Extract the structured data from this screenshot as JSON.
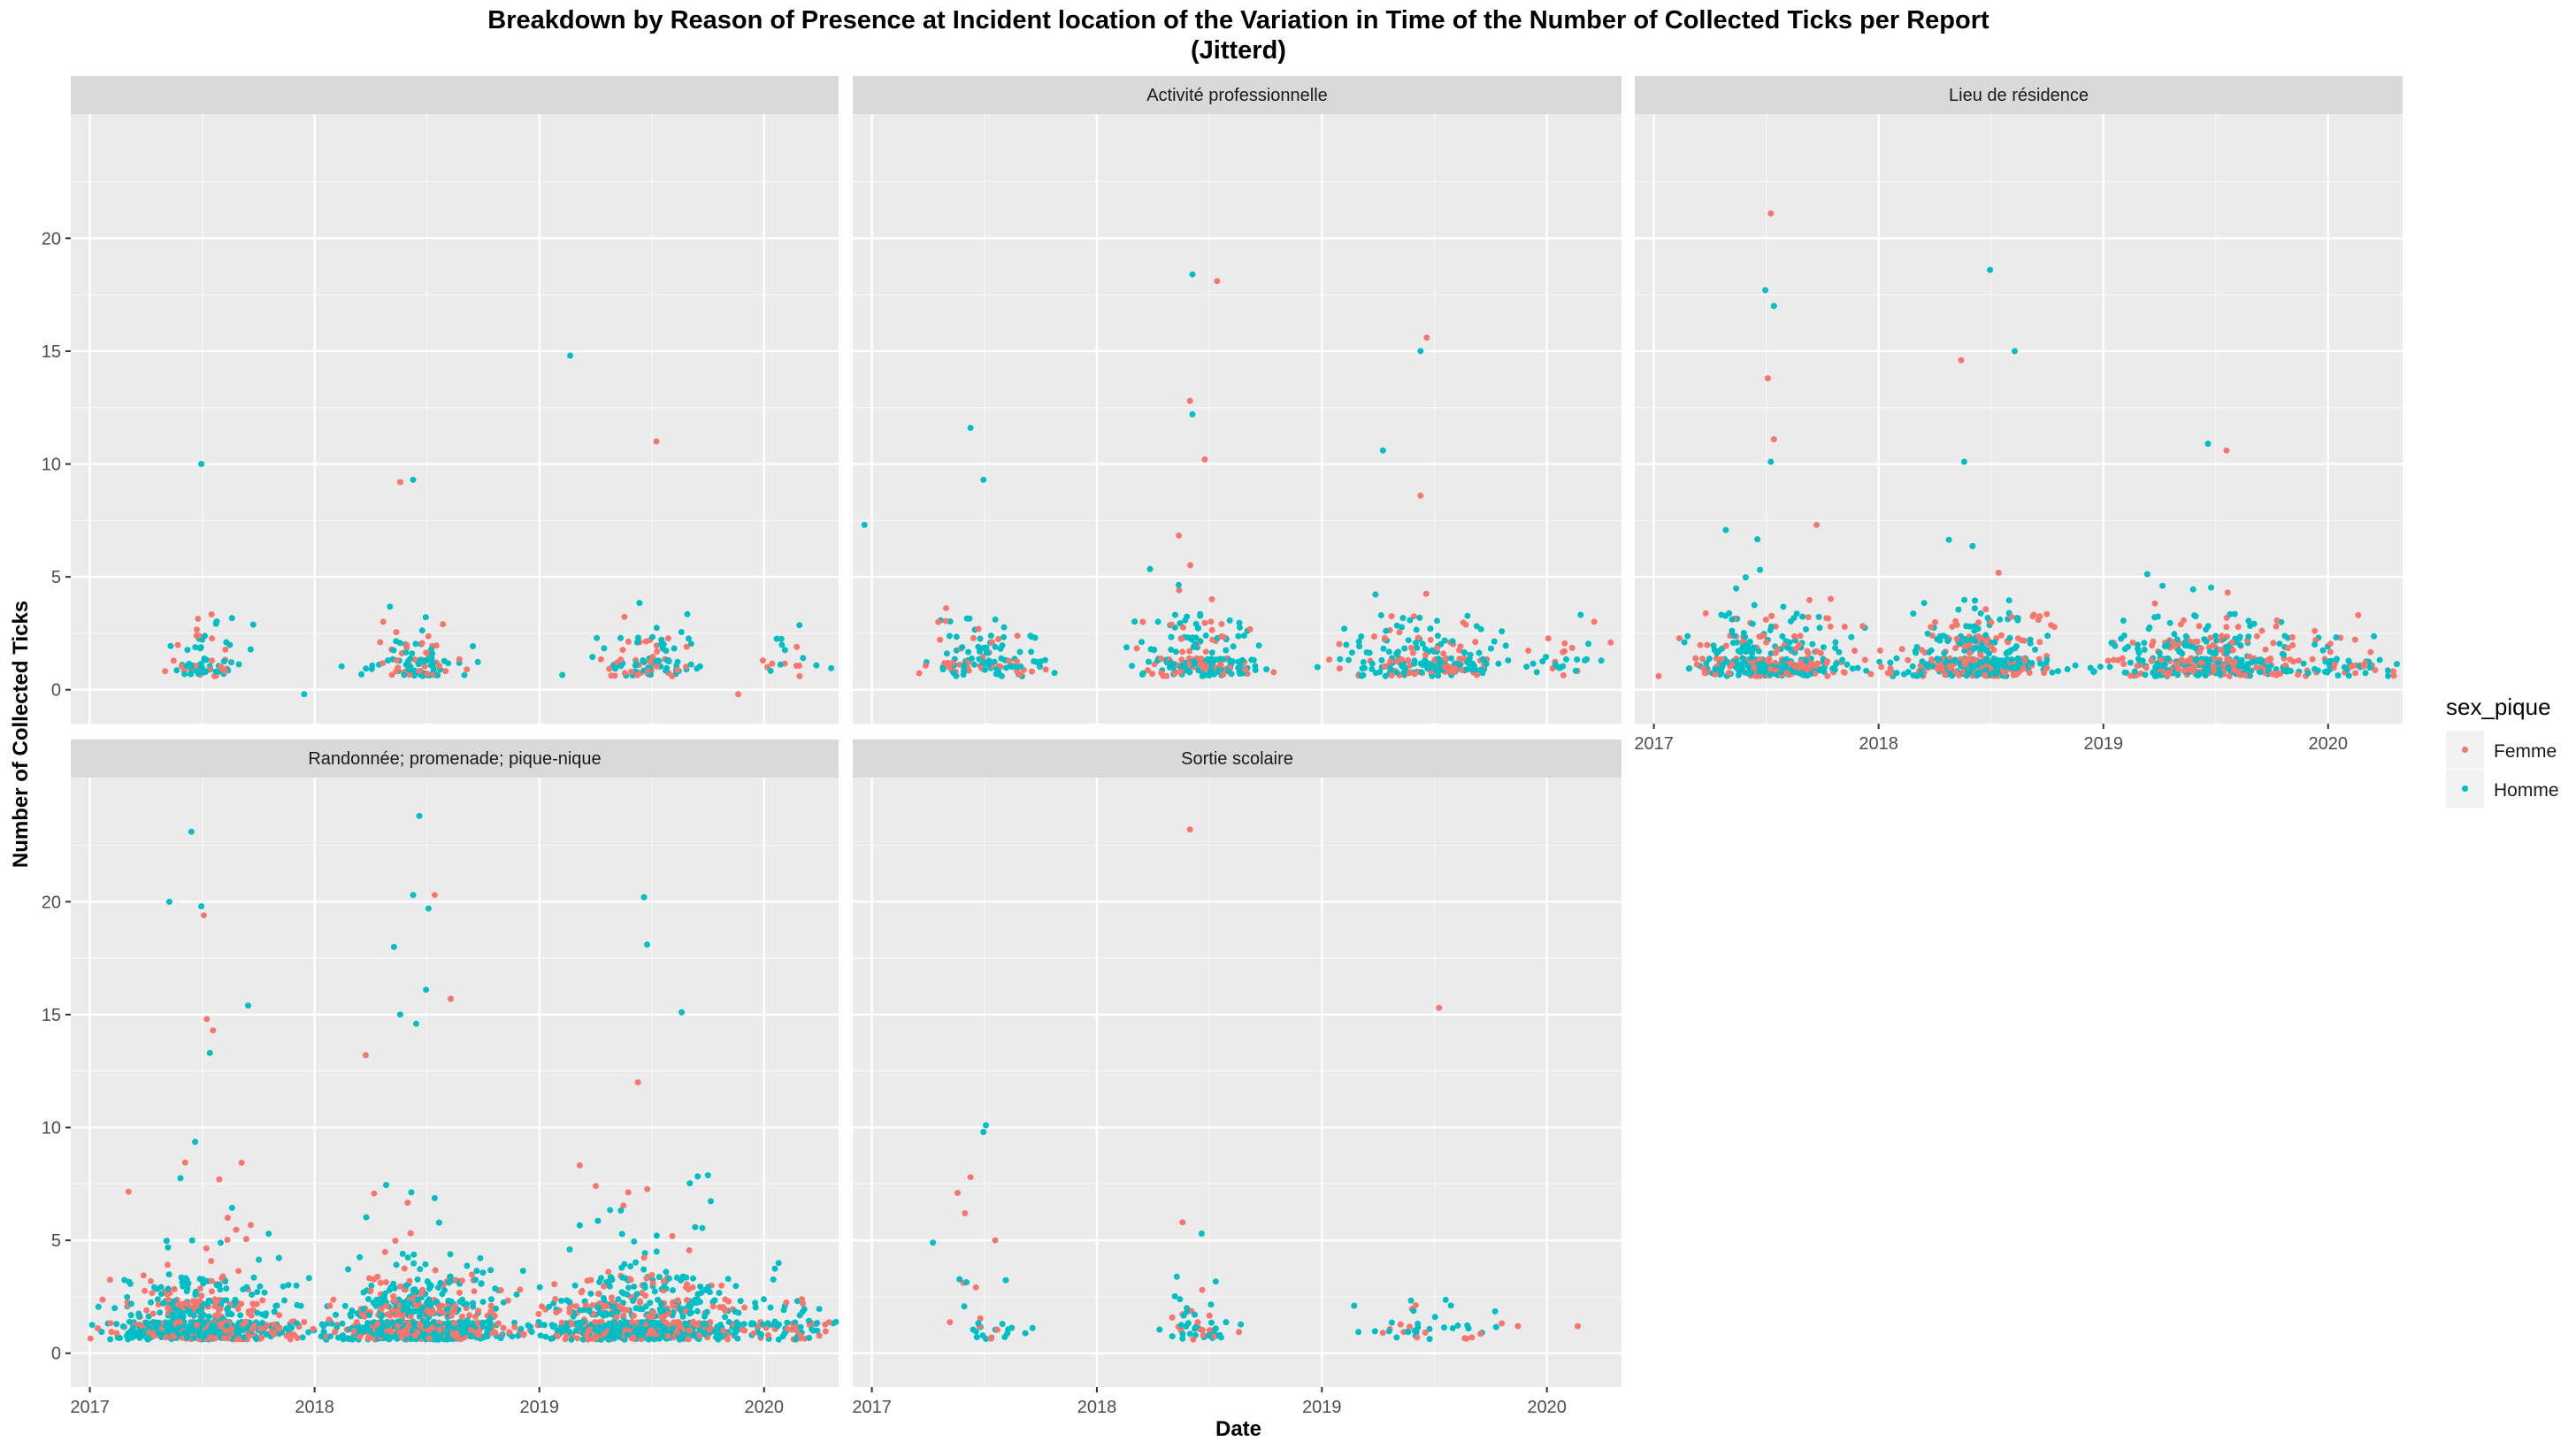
{
  "chart_data": {
    "type": "scatter",
    "title": "Breakdown by Reason of Presence at Incident location of the Variation in Time of the Number of Collected Ticks per Report",
    "subtitle": "(Jitterd)",
    "xlabel": "Date",
    "ylabel": "Number of Collected Ticks",
    "x_ticks": [
      "2017",
      "2018",
      "2019",
      "2020"
    ],
    "y_ticks": [
      "0",
      "5",
      "10",
      "15",
      "20"
    ],
    "xlim": [
      "2016-12-01",
      "2020-05-01"
    ],
    "ylim": [
      -1.5,
      25.5
    ],
    "grid": true,
    "legend": {
      "title": "sex_pique",
      "position": "right",
      "entries": [
        {
          "label": "Femme",
          "color": "#F8766D"
        },
        {
          "label": "Homme",
          "color": "#00BFC4"
        }
      ]
    },
    "panels": [
      {
        "name": "",
        "clusters": [
          {
            "center": "2017-07-05",
            "width_days": 70,
            "count": [
              24,
              46
            ],
            "max": 5
          },
          {
            "center": "2018-06-15",
            "width_days": 80,
            "count": [
              38,
              66
            ],
            "max": 4
          },
          {
            "center": "2019-06-20",
            "width_days": 90,
            "count": [
              36,
              62
            ],
            "max": 5
          },
          {
            "center": "2020-02-01",
            "width_days": 110,
            "count": [
              8,
              10
            ],
            "max": 1.5
          }
        ],
        "outliers": [
          {
            "date": "2017-07-01",
            "value": 10,
            "sex": "Homme"
          },
          {
            "date": "2018-05-20",
            "value": 9.2,
            "sex": "Femme"
          },
          {
            "date": "2018-06-10",
            "value": 9.3,
            "sex": "Homme"
          },
          {
            "date": "2019-02-20",
            "value": 14.8,
            "sex": "Homme"
          },
          {
            "date": "2019-07-10",
            "value": 11,
            "sex": "Femme"
          },
          {
            "date": "2017-12-15",
            "value": -0.2,
            "sex": "Homme"
          },
          {
            "date": "2019-11-20",
            "value": -0.2,
            "sex": "Femme"
          }
        ]
      },
      {
        "name": "Activité professionnelle",
        "clusters": [
          {
            "center": "2017-07-01",
            "width_days": 95,
            "count": [
              40,
              80
            ],
            "max": 4.5
          },
          {
            "center": "2018-06-15",
            "width_days": 110,
            "count": [
              70,
              140
            ],
            "max": 8
          },
          {
            "center": "2019-06-15",
            "width_days": 140,
            "count": [
              80,
              160
            ],
            "max": 6
          },
          {
            "center": "2020-01-25",
            "width_days": 100,
            "count": [
              12,
              18
            ],
            "max": 3
          }
        ],
        "outliers": [
          {
            "date": "2017-06-10",
            "value": 11.6,
            "sex": "Homme"
          },
          {
            "date": "2017-07-01",
            "value": 9.3,
            "sex": "Homme"
          },
          {
            "date": "2016-12-20",
            "value": 7.3,
            "sex": "Homme"
          },
          {
            "date": "2018-06-05",
            "value": 18.4,
            "sex": "Homme"
          },
          {
            "date": "2018-07-15",
            "value": 18.1,
            "sex": "Femme"
          },
          {
            "date": "2018-06-01",
            "value": 12.8,
            "sex": "Femme"
          },
          {
            "date": "2018-06-05",
            "value": 12.2,
            "sex": "Homme"
          },
          {
            "date": "2018-06-25",
            "value": 10.2,
            "sex": "Femme"
          },
          {
            "date": "2019-06-20",
            "value": 15.6,
            "sex": "Femme"
          },
          {
            "date": "2019-06-10",
            "value": 15.0,
            "sex": "Homme"
          },
          {
            "date": "2019-04-10",
            "value": 10.6,
            "sex": "Homme"
          },
          {
            "date": "2019-06-10",
            "value": 8.6,
            "sex": "Femme"
          }
        ]
      },
      {
        "name": "Lieu de résidence",
        "clusters": [
          {
            "center": "2017-07-01",
            "width_days": 150,
            "count": [
              140,
              220
            ],
            "max": 9
          },
          {
            "center": "2018-06-10",
            "width_days": 150,
            "count": [
              160,
              240
            ],
            "max": 8
          },
          {
            "center": "2019-06-20",
            "width_days": 170,
            "count": [
              160,
              240
            ],
            "max": 5.5
          },
          {
            "center": "2020-01-25",
            "width_days": 110,
            "count": [
              30,
              40
            ],
            "max": 2.5
          }
        ],
        "outliers": [
          {
            "date": "2017-07-10",
            "value": 21.1,
            "sex": "Femme"
          },
          {
            "date": "2017-07-01",
            "value": 17.7,
            "sex": "Homme"
          },
          {
            "date": "2017-07-15",
            "value": 17.0,
            "sex": "Homme"
          },
          {
            "date": "2017-07-05",
            "value": 13.8,
            "sex": "Femme"
          },
          {
            "date": "2017-07-15",
            "value": 11.1,
            "sex": "Femme"
          },
          {
            "date": "2017-07-10",
            "value": 10.1,
            "sex": "Homme"
          },
          {
            "date": "2018-07-01",
            "value": 18.6,
            "sex": "Homme"
          },
          {
            "date": "2018-08-10",
            "value": 15.0,
            "sex": "Homme"
          },
          {
            "date": "2018-05-15",
            "value": 14.6,
            "sex": "Femme"
          },
          {
            "date": "2018-05-20",
            "value": 10.1,
            "sex": "Homme"
          },
          {
            "date": "2019-06-20",
            "value": 10.9,
            "sex": "Homme"
          },
          {
            "date": "2019-07-20",
            "value": 10.6,
            "sex": "Femme"
          }
        ]
      },
      {
        "name": "Randonnée; promenade; pique-nique",
        "clusters": [
          {
            "center": "2017-07-01",
            "width_days": 150,
            "count": [
              260,
              420
            ],
            "max": 11
          },
          {
            "center": "2018-06-15",
            "width_days": 160,
            "count": [
              300,
              520
            ],
            "max": 9
          },
          {
            "center": "2019-06-20",
            "width_days": 180,
            "count": [
              300,
              500
            ],
            "max": 9
          },
          {
            "center": "2020-01-25",
            "width_days": 120,
            "count": [
              30,
              50
            ],
            "max": 2.5
          }
        ],
        "outliers": [
          {
            "date": "2017-06-15",
            "value": 23.1,
            "sex": "Homme"
          },
          {
            "date": "2017-05-10",
            "value": 20.0,
            "sex": "Homme"
          },
          {
            "date": "2017-07-01",
            "value": 19.8,
            "sex": "Homme"
          },
          {
            "date": "2017-07-05",
            "value": 19.4,
            "sex": "Femme"
          },
          {
            "date": "2017-09-15",
            "value": 15.4,
            "sex": "Homme"
          },
          {
            "date": "2017-07-10",
            "value": 14.8,
            "sex": "Femme"
          },
          {
            "date": "2017-07-20",
            "value": 14.3,
            "sex": "Femme"
          },
          {
            "date": "2017-07-15",
            "value": 13.3,
            "sex": "Homme"
          },
          {
            "date": "2018-06-20",
            "value": 23.8,
            "sex": "Homme"
          },
          {
            "date": "2018-06-10",
            "value": 20.3,
            "sex": "Homme"
          },
          {
            "date": "2018-07-15",
            "value": 20.3,
            "sex": "Femme"
          },
          {
            "date": "2018-07-05",
            "value": 19.7,
            "sex": "Homme"
          },
          {
            "date": "2018-05-10",
            "value": 18.0,
            "sex": "Homme"
          },
          {
            "date": "2018-07-01",
            "value": 16.1,
            "sex": "Homme"
          },
          {
            "date": "2018-08-10",
            "value": 15.7,
            "sex": "Femme"
          },
          {
            "date": "2018-05-20",
            "value": 15.0,
            "sex": "Homme"
          },
          {
            "date": "2018-06-15",
            "value": 14.6,
            "sex": "Homme"
          },
          {
            "date": "2018-03-25",
            "value": 13.2,
            "sex": "Femme"
          },
          {
            "date": "2019-06-20",
            "value": 20.2,
            "sex": "Homme"
          },
          {
            "date": "2019-06-25",
            "value": 18.1,
            "sex": "Homme"
          },
          {
            "date": "2019-08-20",
            "value": 15.1,
            "sex": "Homme"
          },
          {
            "date": "2019-06-10",
            "value": 12.0,
            "sex": "Femme"
          }
        ]
      },
      {
        "name": "Sortie scolaire",
        "clusters": [
          {
            "center": "2017-07-01",
            "width_days": 90,
            "count": [
              8,
              20
            ],
            "max": 2
          },
          {
            "center": "2018-06-15",
            "width_days": 90,
            "count": [
              16,
              34
            ],
            "max": 3
          },
          {
            "center": "2019-06-25",
            "width_days": 140,
            "count": [
              14,
              28
            ],
            "max": 2.5
          }
        ],
        "outliers": [
          {
            "date": "2018-06-01",
            "value": 23.2,
            "sex": "Femme"
          },
          {
            "date": "2019-07-10",
            "value": 15.3,
            "sex": "Femme"
          },
          {
            "date": "2017-07-05",
            "value": 10.1,
            "sex": "Homme"
          },
          {
            "date": "2017-07-01",
            "value": 9.8,
            "sex": "Homme"
          },
          {
            "date": "2017-06-10",
            "value": 7.8,
            "sex": "Femme"
          },
          {
            "date": "2017-05-20",
            "value": 7.1,
            "sex": "Femme"
          },
          {
            "date": "2017-06-01",
            "value": 6.2,
            "sex": "Femme"
          },
          {
            "date": "2018-05-20",
            "value": 5.8,
            "sex": "Femme"
          },
          {
            "date": "2018-06-20",
            "value": 5.3,
            "sex": "Homme"
          },
          {
            "date": "2017-07-20",
            "value": 5.0,
            "sex": "Femme"
          },
          {
            "date": "2017-04-10",
            "value": 4.9,
            "sex": "Homme"
          },
          {
            "date": "2019-11-15",
            "value": 1.2,
            "sex": "Femme"
          },
          {
            "date": "2020-02-20",
            "value": 1.2,
            "sex": "Femme"
          }
        ]
      }
    ]
  }
}
